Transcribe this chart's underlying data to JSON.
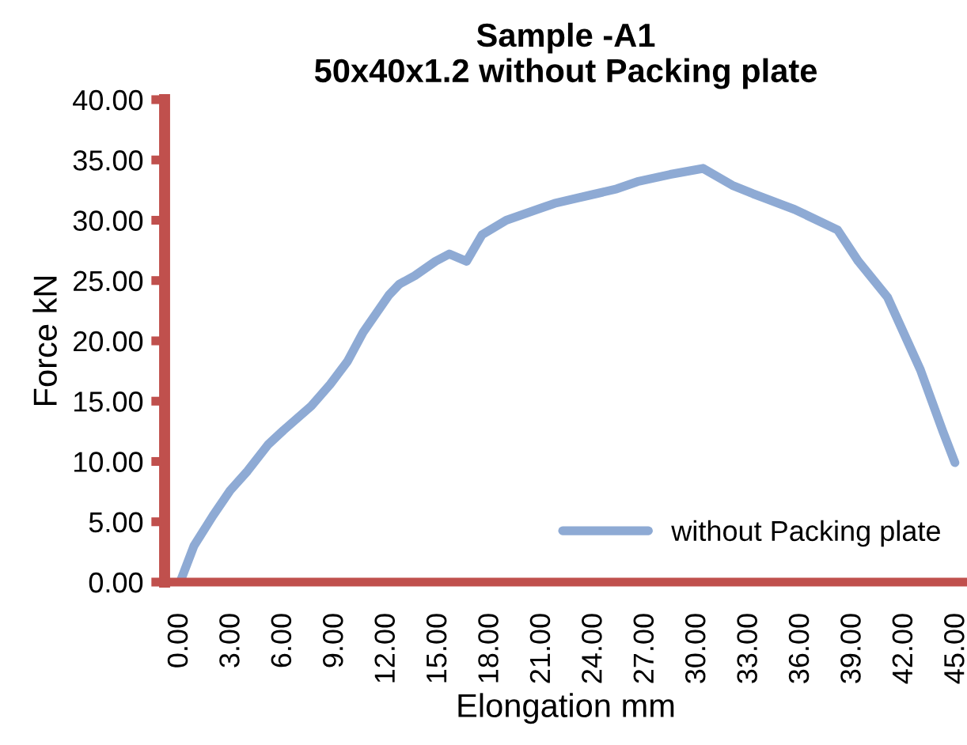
{
  "chart_data": {
    "type": "line",
    "title": "Sample -A1\n50x40x1.2 without Packing plate",
    "xlabel": "Elongation mm",
    "ylabel": "Force kN",
    "xlim": [
      -0.9,
      45.6
    ],
    "ylim": [
      0,
      40
    ],
    "xticks": [
      {
        "value": 0,
        "label": "0.00"
      },
      {
        "value": 3,
        "label": "3.00"
      },
      {
        "value": 6,
        "label": "6.00"
      },
      {
        "value": 9,
        "label": "9.00"
      },
      {
        "value": 12,
        "label": "12.00"
      },
      {
        "value": 15,
        "label": "15.00"
      },
      {
        "value": 18,
        "label": "18.00"
      },
      {
        "value": 21,
        "label": "21.00"
      },
      {
        "value": 24,
        "label": "24.00"
      },
      {
        "value": 27,
        "label": "27.00"
      },
      {
        "value": 30,
        "label": "30.00"
      },
      {
        "value": 33,
        "label": "33.00"
      },
      {
        "value": 36,
        "label": "36.00"
      },
      {
        "value": 39,
        "label": "39.00"
      },
      {
        "value": 42,
        "label": "42.00"
      },
      {
        "value": 45,
        "label": "45.00"
      }
    ],
    "yticks": [
      {
        "value": 0,
        "label": "0.00"
      },
      {
        "value": 5,
        "label": "5.00"
      },
      {
        "value": 10,
        "label": "10.00"
      },
      {
        "value": 15,
        "label": "15.00"
      },
      {
        "value": 20,
        "label": "20.00"
      },
      {
        "value": 25,
        "label": "25.00"
      },
      {
        "value": 30,
        "label": "30.00"
      },
      {
        "value": 35,
        "label": "35.00"
      },
      {
        "value": 40,
        "label": "40.00"
      }
    ],
    "grid": false,
    "legend": "bottom right",
    "marker": "none",
    "line_style": "solid",
    "x": [
      0,
      0.8,
      1.9,
      2.9,
      3.9,
      5.1,
      6.0,
      7.6,
      8.7,
      9.7,
      10.6,
      12.1,
      12.7,
      13.6,
      14.8,
      15.6,
      16.6,
      17.5,
      18.9,
      20.7,
      21.7,
      23.8,
      25.3,
      26.5,
      28.4,
      30.3,
      32.0,
      33.2,
      35.6,
      38.1,
      39.3,
      41.0,
      42.9,
      44.2,
      44.9
    ],
    "series": [
      {
        "name": "without Packing plate",
        "color": "#8eaad4",
        "values": [
          0,
          3.0,
          5.5,
          7.6,
          9.2,
          11.4,
          12.6,
          14.6,
          16.4,
          18.3,
          20.7,
          23.8,
          24.7,
          25.4,
          26.6,
          27.2,
          26.6,
          28.8,
          30.0,
          30.9,
          31.4,
          32.1,
          32.6,
          33.2,
          33.8,
          34.3,
          32.9,
          32.2,
          30.9,
          29.2,
          26.6,
          23.6,
          17.6,
          12.5,
          9.9
        ]
      }
    ]
  }
}
